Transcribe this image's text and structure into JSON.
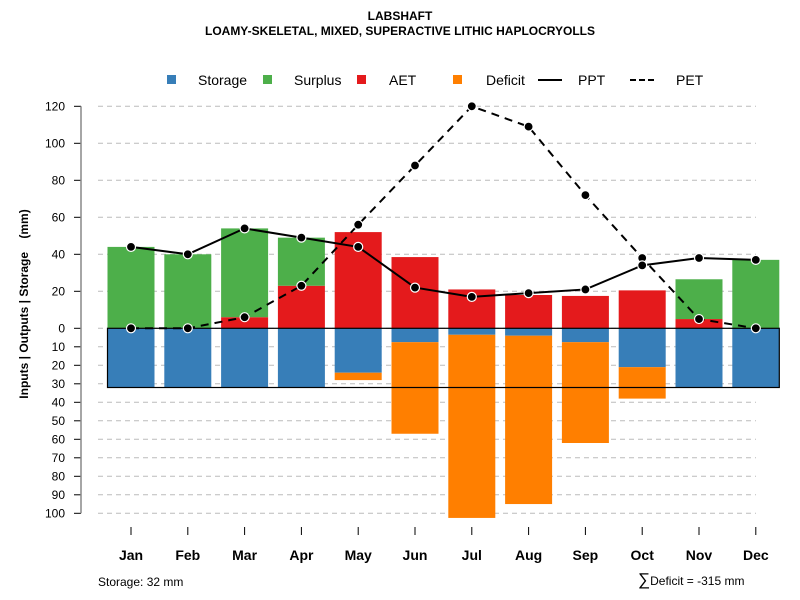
{
  "chart_data": {
    "type": "bar",
    "title": "LABSHAFT",
    "subtitle": "LOAMY-SKELETAL, MIXED, SUPERACTIVE LITHIC HAPLOCRYOLLS",
    "xlabel": "",
    "ylabel": "Inputs | Outputs | Storage    (mm)",
    "categories": [
      "Jan",
      "Feb",
      "Mar",
      "Apr",
      "May",
      "Jun",
      "Jul",
      "Aug",
      "Sep",
      "Oct",
      "Nov",
      "Dec"
    ],
    "ylim_upper": [
      0,
      120
    ],
    "ylim_lower": [
      0,
      100
    ],
    "yticks_upper": [
      "0",
      "20",
      "40",
      "60",
      "80",
      "100",
      "120"
    ],
    "yticks_lower": [
      "10",
      "20",
      "30",
      "40",
      "50",
      "60",
      "70",
      "80",
      "90",
      "100"
    ],
    "grid": true,
    "legend_position": "top",
    "legend": [
      {
        "name": "Storage",
        "kind": "box",
        "color": "#377EB8"
      },
      {
        "name": "Surplus",
        "kind": "box",
        "color": "#4DAF4A"
      },
      {
        "name": "AET",
        "kind": "box",
        "color": "#E41A1C"
      },
      {
        "name": "Deficit",
        "kind": "box",
        "color": "#FF7F00"
      },
      {
        "name": "PPT",
        "kind": "solid-line",
        "color": "#000000"
      },
      {
        "name": "PET",
        "kind": "dashed-line",
        "color": "#000000"
      }
    ],
    "series": [
      {
        "name": "AET",
        "type": "bar-up",
        "color": "#E41A1C",
        "values": [
          0,
          0,
          6,
          23,
          52,
          38.5,
          21,
          18,
          17.5,
          20.5,
          5,
          0
        ]
      },
      {
        "name": "Surplus",
        "type": "bar-up-stacked",
        "color": "#4DAF4A",
        "values": [
          44,
          40,
          48,
          26,
          0,
          0,
          0,
          0,
          0,
          0,
          21.5,
          37
        ]
      },
      {
        "name": "Storage",
        "type": "bar-down",
        "color": "#377EB8",
        "values": [
          32,
          32,
          32,
          32,
          24,
          7.5,
          3.5,
          4,
          7.5,
          21,
          32,
          32
        ]
      },
      {
        "name": "Deficit",
        "type": "bar-down-stacked",
        "color": "#FF7F00",
        "values": [
          0,
          0,
          0,
          0,
          4,
          49.5,
          99,
          91,
          54.5,
          17,
          0,
          0
        ]
      },
      {
        "name": "PPT",
        "type": "line-solid",
        "color": "#000000",
        "values": [
          44,
          40,
          54,
          49,
          44,
          22,
          17,
          19,
          21,
          34,
          38,
          37
        ]
      },
      {
        "name": "PET",
        "type": "line-dashed",
        "color": "#000000",
        "values": [
          0,
          0,
          6,
          23,
          56,
          88,
          120,
          109,
          72,
          38,
          5,
          0
        ]
      }
    ],
    "storage_capacity": 32,
    "annotations": {
      "storage": "Storage: 32 mm",
      "deficit_sum_symbol": "∑",
      "deficit_sum": "Deficit = -315 mm"
    }
  }
}
